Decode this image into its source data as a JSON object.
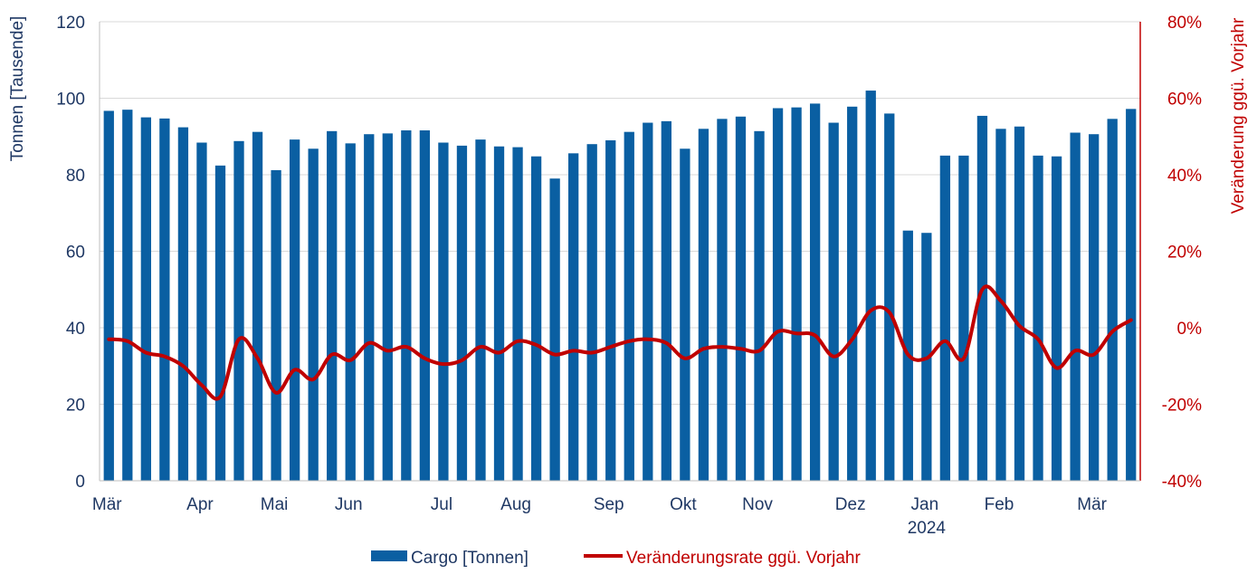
{
  "chart_data": {
    "type": "bar",
    "ylabel": "Tonnen [Tausende]",
    "y2label": "Veränderung ggü. Vorjahr",
    "ylim": [
      0,
      120
    ],
    "y2lim": [
      -40,
      80
    ],
    "yticks": [
      "0",
      "20",
      "40",
      "60",
      "80",
      "100",
      "120"
    ],
    "y2ticks": [
      "-40%",
      "-20%",
      "0%",
      "20%",
      "40%",
      "60%",
      "80%"
    ],
    "x_tick_labels": [
      {
        "label": "Mär",
        "index": 0
      },
      {
        "label": "Apr",
        "index": 5
      },
      {
        "label": "Mai",
        "index": 9
      },
      {
        "label": "Jun",
        "index": 13
      },
      {
        "label": "Jul",
        "index": 18
      },
      {
        "label": "Aug",
        "index": 22
      },
      {
        "label": "Sep",
        "index": 27
      },
      {
        "label": "Okt",
        "index": 31
      },
      {
        "label": "Nov",
        "index": 35
      },
      {
        "label": "Dez",
        "index": 40
      },
      {
        "label": "Jan",
        "index": 44
      },
      {
        "label": "Feb",
        "index": 48
      },
      {
        "label": "Mär",
        "index": 53
      }
    ],
    "year_label": {
      "label": "2024",
      "index": 44
    },
    "grid": true,
    "legend_position": "bottom",
    "series": [
      {
        "name": "Cargo [Tonnen]",
        "type": "bar",
        "axis": "left",
        "color": "#0a5fa2",
        "values": [
          96.7,
          97.0,
          95.0,
          94.7,
          92.4,
          88.4,
          82.4,
          88.8,
          91.2,
          81.2,
          89.2,
          86.8,
          91.4,
          88.2,
          90.6,
          90.8,
          91.6,
          91.6,
          88.4,
          87.6,
          89.2,
          87.4,
          87.2,
          84.8,
          79.0,
          85.6,
          88.0,
          89.0,
          91.2,
          93.6,
          94.0,
          86.8,
          92.0,
          94.6,
          95.2,
          91.4,
          97.4,
          97.6,
          98.6,
          93.6,
          97.8,
          102.0,
          96.0,
          65.4,
          64.8,
          85.0,
          85.0,
          95.4,
          92.0,
          92.6,
          85.0,
          84.8,
          91.0,
          90.6,
          94.6,
          97.2
        ]
      },
      {
        "name": "Veränderungsrate ggü. Vorjahr",
        "type": "line",
        "axis": "right",
        "color": "#c00000",
        "values": [
          -3.0,
          -3.5,
          -6.5,
          -7.5,
          -10.0,
          -15.0,
          -18.0,
          -3.0,
          -8.0,
          -17.0,
          -11.0,
          -13.5,
          -7.0,
          -8.5,
          -4.0,
          -6.0,
          -5.0,
          -8.0,
          -9.5,
          -8.5,
          -5.0,
          -6.5,
          -3.5,
          -4.5,
          -7.0,
          -6.0,
          -6.5,
          -5.0,
          -3.5,
          -3.0,
          -4.0,
          -8.0,
          -5.5,
          -5.0,
          -5.5,
          -6.0,
          -1.0,
          -1.5,
          -2.0,
          -7.5,
          -3.0,
          4.5,
          4.0,
          -7.0,
          -8.0,
          -3.5,
          -8.0,
          10.0,
          7.0,
          0.5,
          -3.0,
          -10.5,
          -6.0,
          -7.0,
          -1.0,
          2.0
        ]
      }
    ]
  }
}
